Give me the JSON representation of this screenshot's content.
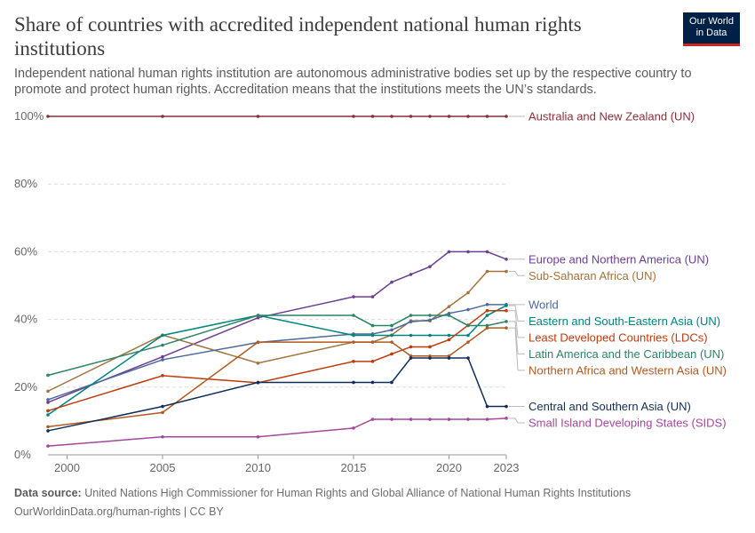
{
  "header": {
    "title": "Share of countries with accredited independent national human rights institutions",
    "subtitle": "Independent national human rights institution are autonomous administrative bodies set up by the respective country to promote and protect human rights. Accreditation means that the institutions meets the UN’s standards.",
    "logo_line1": "Our World",
    "logo_line2": "in Data"
  },
  "footer": {
    "source_label": "Data source:",
    "source_text": "United Nations High Commissioner for Human Rights and Global Alliance of National Human Rights Institutions",
    "credit": "OurWorldinData.org/human-rights | CC BY"
  },
  "chart_data": {
    "type": "line",
    "title": "Share of countries with accredited independent national human rights institutions",
    "xlim": [
      1999,
      2023
    ],
    "ylim": [
      0,
      100
    ],
    "yticks": [
      0,
      20,
      40,
      60,
      80,
      100
    ],
    "ytick_labels": [
      "0%",
      "20%",
      "40%",
      "60%",
      "80%",
      "100%"
    ],
    "xticks": [
      2000,
      2005,
      2010,
      2015,
      2020,
      2023
    ],
    "xtick_labels": [
      "2000",
      "2005",
      "2010",
      "2015",
      "2020",
      "2023"
    ],
    "grid": "horizontal dashed",
    "legend": "right, inline labels",
    "series": [
      {
        "name": "Australia and New Zealand (UN)",
        "color": "#883039",
        "x": [
          1999,
          2005,
          2010,
          2015,
          2016,
          2017,
          2018,
          2019,
          2020,
          2021,
          2022,
          2023
        ],
        "y": [
          100,
          100,
          100,
          100,
          100,
          100,
          100,
          100,
          100,
          100,
          100,
          100
        ]
      },
      {
        "name": "Europe and Northern America (UN)",
        "color": "#6d3e91",
        "x": [
          1999,
          2005,
          2010,
          2015,
          2016,
          2017,
          2018,
          2019,
          2020,
          2021,
          2022,
          2023
        ],
        "y": [
          15.5,
          29,
          40.5,
          46.7,
          46.7,
          51,
          53.3,
          55.6,
          60,
          60,
          60,
          57.8
        ]
      },
      {
        "name": "Sub-Saharan Africa (UN)",
        "color": "#a2733c",
        "x": [
          1999,
          2005,
          2010,
          2015,
          2016,
          2017,
          2018,
          2019,
          2020,
          2021,
          2022,
          2023
        ],
        "y": [
          18.8,
          35.4,
          27.1,
          33.3,
          33.3,
          35.4,
          39.6,
          39.6,
          43.8,
          47.9,
          54.2,
          54.2
        ]
      },
      {
        "name": "World",
        "color": "#4c6a9c",
        "x": [
          1999,
          2005,
          2010,
          2015,
          2016,
          2017,
          2018,
          2019,
          2020,
          2021,
          2022,
          2023
        ],
        "y": [
          16.3,
          28.1,
          33.2,
          35.7,
          35.7,
          36.9,
          39.3,
          39.8,
          41.8,
          42.9,
          44.4,
          44.4
        ]
      },
      {
        "name": "Eastern and South-Eastern Asia (UN)",
        "color": "#00847e",
        "x": [
          1999,
          2005,
          2010,
          2015,
          2016,
          2017,
          2018,
          2019,
          2020,
          2021,
          2022,
          2023
        ],
        "y": [
          11.8,
          35.3,
          41.2,
          35.3,
          35.3,
          35.3,
          35.3,
          35.3,
          35.3,
          35.3,
          41.2,
          44.1
        ]
      },
      {
        "name": "Least Developed Countries (LDCs)",
        "color": "#be3b0c",
        "x": [
          1999,
          2005,
          2010,
          2015,
          2016,
          2017,
          2018,
          2019,
          2020,
          2021,
          2022,
          2023
        ],
        "y": [
          13,
          23.4,
          21.3,
          27.6,
          27.6,
          29.8,
          31.9,
          31.9,
          34,
          38.3,
          42.6,
          42.6
        ]
      },
      {
        "name": "Latin America and the Caribbean (UN)",
        "color": "#2c8465",
        "x": [
          1999,
          2005,
          2010,
          2015,
          2016,
          2017,
          2018,
          2019,
          2020,
          2021,
          2022,
          2023
        ],
        "y": [
          23.5,
          32.4,
          41.2,
          41.2,
          38.2,
          38.2,
          41.2,
          41.2,
          41.2,
          38.2,
          38.2,
          39.4
        ]
      },
      {
        "name": "Northern Africa and Western Asia (UN)",
        "color": "#b05a22",
        "x": [
          1999,
          2005,
          2010,
          2015,
          2016,
          2017,
          2018,
          2019,
          2020,
          2021,
          2022,
          2023
        ],
        "y": [
          8.3,
          12.5,
          33.3,
          33.3,
          33.3,
          33.3,
          29.2,
          29.2,
          29.2,
          33.3,
          37.5,
          37.5
        ]
      },
      {
        "name": "Central and Southern Asia (UN)",
        "color": "#102e57",
        "x": [
          1999,
          2005,
          2010,
          2015,
          2016,
          2017,
          2018,
          2019,
          2020,
          2021,
          2022,
          2023
        ],
        "y": [
          7.1,
          14.3,
          21.4,
          21.4,
          21.4,
          21.4,
          28.6,
          28.6,
          28.6,
          28.6,
          14.3,
          14.3
        ]
      },
      {
        "name": "Small Island Developing States (SIDS)",
        "color": "#a3479d",
        "x": [
          1999,
          2005,
          2010,
          2015,
          2016,
          2017,
          2018,
          2019,
          2020,
          2021,
          2022,
          2023
        ],
        "y": [
          2.6,
          5.3,
          5.3,
          7.9,
          10.5,
          10.5,
          10.5,
          10.5,
          10.5,
          10.5,
          10.5,
          10.8
        ]
      }
    ]
  }
}
